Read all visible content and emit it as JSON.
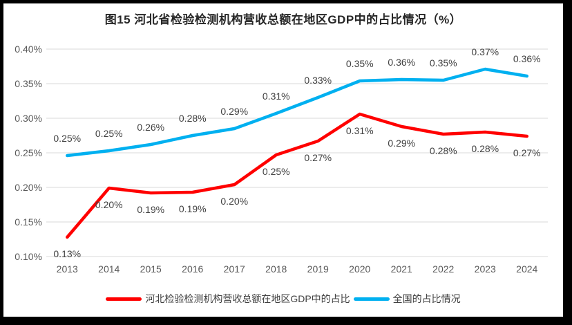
{
  "window": {
    "frame_color": "#000000",
    "background": "#ffffff"
  },
  "chart_data": {
    "type": "line",
    "title": "图15 河北省检验检测机构营收总额在地区GDP中的占比情况（%）",
    "categories": [
      "2013",
      "2014",
      "2015",
      "2016",
      "2017",
      "2018",
      "2019",
      "2020",
      "2021",
      "2022",
      "2023",
      "2024"
    ],
    "y_axis": {
      "min": 0.1,
      "max": 0.4,
      "unit": "%",
      "grid": true,
      "ticks": [
        {
          "label": "0.40%",
          "value": 0.4
        },
        {
          "label": "0.35%",
          "value": 0.35
        },
        {
          "label": "0.30%",
          "value": 0.3
        },
        {
          "label": "0.25%",
          "value": 0.25
        },
        {
          "label": "0.20%",
          "value": 0.2
        },
        {
          "label": "0.15%",
          "value": 0.15
        },
        {
          "label": "0.10%",
          "value": 0.1
        }
      ]
    },
    "series": [
      {
        "name": "河北检验检测机构营收总额在地区GDP中的占比",
        "color": "#ff0000",
        "values": [
          0.13,
          0.2,
          0.19,
          0.19,
          0.2,
          0.25,
          0.27,
          0.31,
          0.29,
          0.28,
          0.28,
          0.27
        ],
        "labels": [
          "0.13%",
          "0.20%",
          "0.19%",
          "0.19%",
          "0.20%",
          "0.25%",
          "0.27%",
          "0.31%",
          "0.29%",
          "0.28%",
          "0.28%",
          "0.27%"
        ],
        "plot_values": [
          0.128,
          0.199,
          0.192,
          0.193,
          0.204,
          0.247,
          0.267,
          0.306,
          0.288,
          0.277,
          0.28,
          0.274
        ],
        "label_position": "below"
      },
      {
        "name": "全国的占比情况",
        "color": "#00b0f0",
        "values": [
          0.25,
          0.25,
          0.26,
          0.28,
          0.29,
          0.31,
          0.33,
          0.35,
          0.36,
          0.35,
          0.37,
          0.36
        ],
        "labels": [
          "0.25%",
          "0.25%",
          "0.26%",
          "0.28%",
          "0.29%",
          "0.31%",
          "0.33%",
          "0.35%",
          "0.36%",
          "0.35%",
          "0.37%",
          "0.36%"
        ],
        "plot_values": [
          0.246,
          0.253,
          0.262,
          0.275,
          0.285,
          0.307,
          0.33,
          0.354,
          0.356,
          0.355,
          0.371,
          0.361
        ],
        "label_position": "above"
      }
    ],
    "legend_position": "bottom",
    "style": {
      "grid_color": "#d9d9d9",
      "axis_label_color": "#595959",
      "data_label_color": "#404040",
      "line_width": 4.5
    }
  }
}
